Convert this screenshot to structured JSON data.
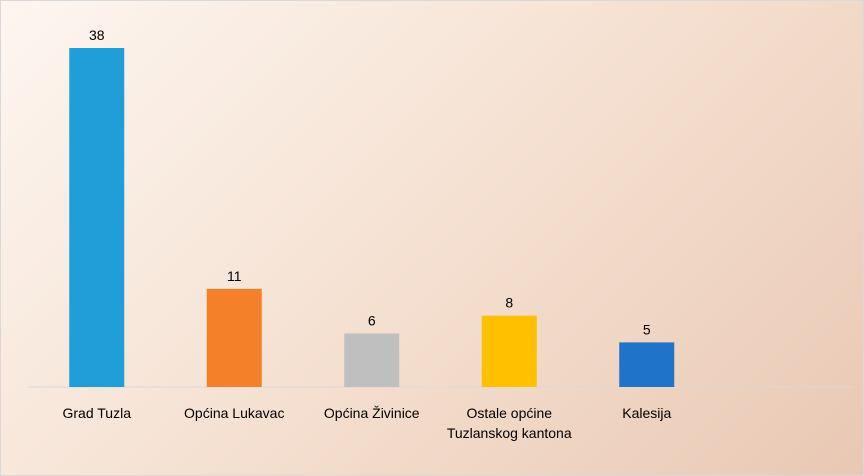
{
  "chart_data": {
    "type": "bar",
    "categories": [
      "Grad Tuzla",
      "Općina Lukavac",
      "Općina Živinice",
      "Ostale općine Tuzlanskog kantona",
      "Kalesija",
      null
    ],
    "values": [
      38,
      11,
      6,
      8,
      5,
      null
    ],
    "colors": [
      "#1f9ed8",
      "#f5802a",
      "#bfbfbf",
      "#ffc000",
      "#1f73c9",
      null
    ]
  }
}
